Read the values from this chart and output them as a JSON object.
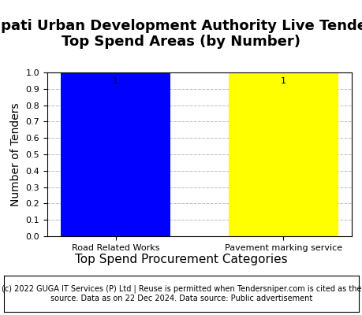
{
  "title_line1": "Tirupati Urban Development Authority Live Tenders -",
  "title_line2": "Top Spend Areas (by Number)",
  "categories": [
    "Road Related Works",
    "Pavement marking service"
  ],
  "values": [
    1,
    1
  ],
  "bar_colors": [
    "#0000FF",
    "#FFFF00"
  ],
  "xlabel": "Top Spend Procurement Categories",
  "ylabel": "Number of Tenders",
  "ylim": [
    0,
    1.0
  ],
  "yticks": [
    0.0,
    0.1,
    0.2,
    0.3,
    0.4,
    0.5,
    0.6,
    0.7,
    0.8,
    0.9,
    1.0
  ],
  "bar_label_fontsize": 8,
  "axis_label_fontsize": 10,
  "tick_fontsize": 8,
  "title_fontsize": 13,
  "xlabel_fontsize": 11,
  "footer_text": "(c) 2022 GUGA IT Services (P) Ltd | Reuse is permitted when Tendersniper.com is cited as the\nsource. Data as on 22 Dec 2024. Data source: Public advertisement",
  "footer_fontsize": 7,
  "background_color": "#ffffff",
  "grid_color": "#bbbbbb",
  "bar_width": 0.65
}
